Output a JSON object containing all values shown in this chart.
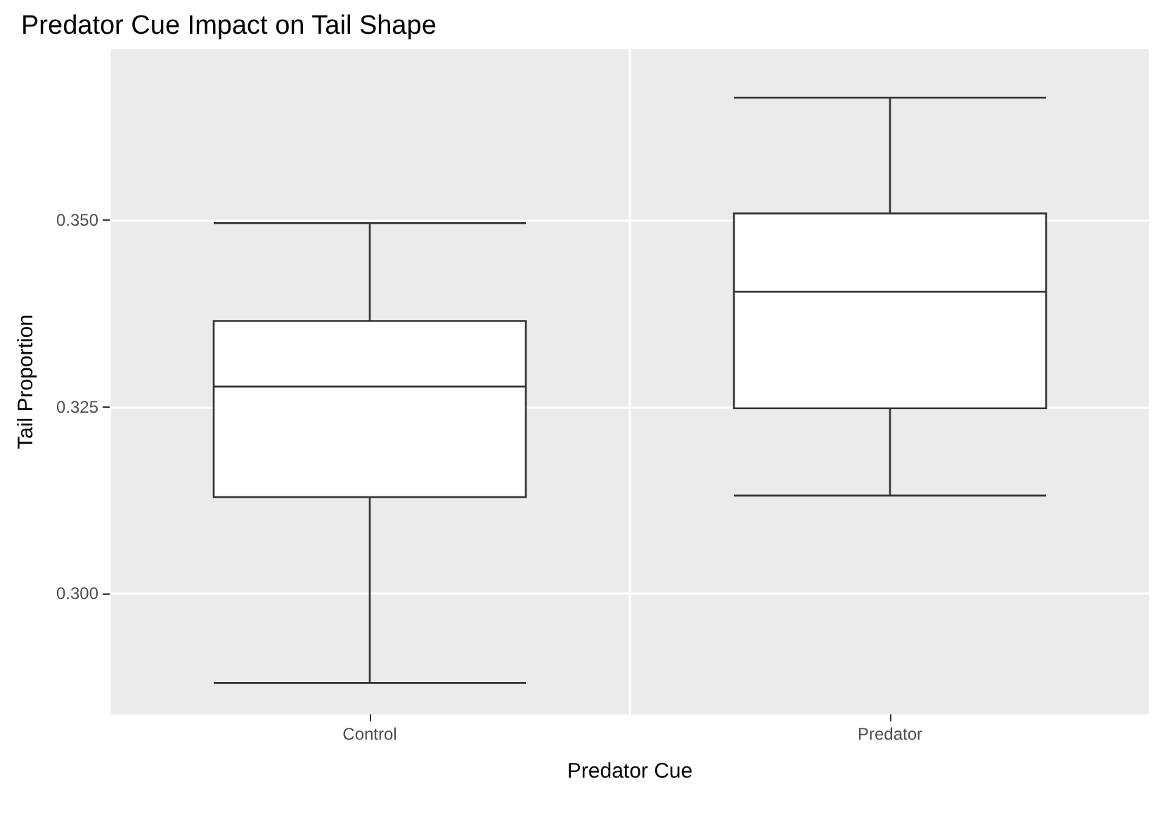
{
  "chart_data": {
    "type": "box",
    "title": "Predator Cue Impact on Tail Shape",
    "xlabel": "Predator Cue",
    "ylabel": "Tail Proportion",
    "categories": [
      "Control",
      "Predator"
    ],
    "boxes": [
      {
        "low": 0.288,
        "q1": 0.3129,
        "median": 0.3277,
        "q3": 0.3365,
        "high": 0.3496
      },
      {
        "low": 0.3131,
        "q1": 0.3248,
        "median": 0.3404,
        "q3": 0.3509,
        "high": 0.3664
      }
    ],
    "color": "#333333",
    "ylim": [
      0.2838,
      0.3729
    ],
    "yticks": [
      {
        "value": 0.3,
        "label": "0.300"
      },
      {
        "value": 0.325,
        "label": "0.325"
      },
      {
        "value": 0.35,
        "label": "0.350"
      }
    ],
    "grid": true
  }
}
